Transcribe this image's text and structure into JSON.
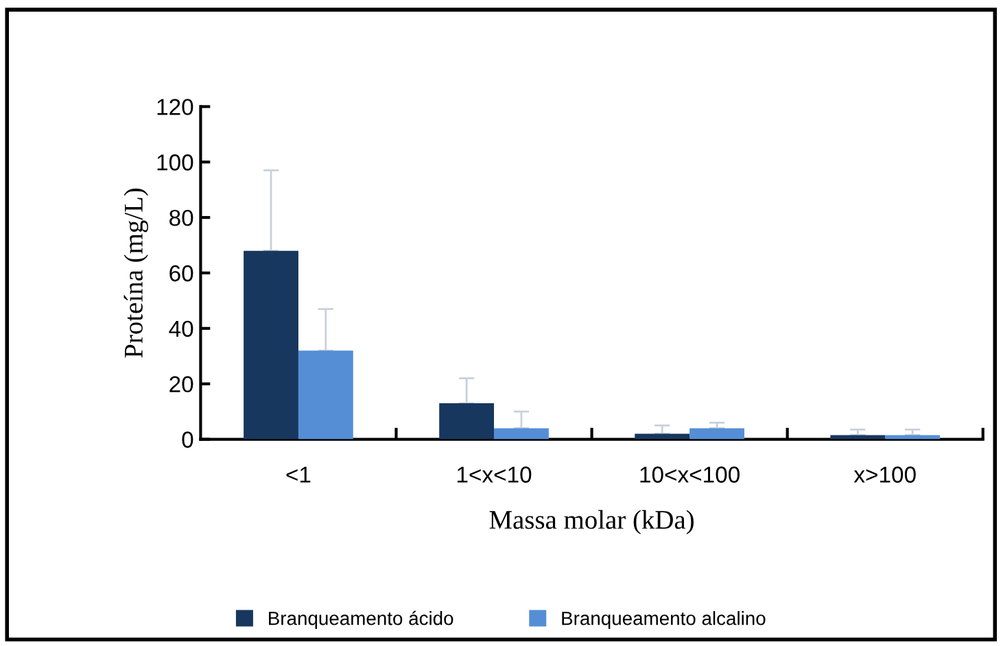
{
  "chart_data": {
    "type": "bar",
    "categories": [
      "<1",
      "1<x<10",
      "10<x<100",
      "x>100"
    ],
    "xlabel": "Massa molar (kDa)",
    "ylabel": "Proteína (mg/L)",
    "series": [
      {
        "name": "Branqueamento ácido",
        "color": "#17375e",
        "values": [
          68,
          13,
          2,
          1.5
        ],
        "errors": [
          [
            68,
            97
          ],
          [
            13,
            22
          ],
          [
            2,
            5
          ],
          [
            1.5,
            3.5
          ]
        ]
      },
      {
        "name": "Branqueamento alcalino",
        "color": "#558ed5",
        "values": [
          32,
          4,
          4,
          1.5
        ],
        "errors": [
          [
            32,
            47
          ],
          [
            4,
            10
          ],
          [
            4,
            6
          ],
          [
            1.5,
            3.5
          ]
        ]
      }
    ],
    "ylim": [
      0,
      120
    ],
    "yticks": [
      0,
      20,
      40,
      60,
      80,
      100,
      120
    ],
    "grid": false,
    "legend": "bottom"
  }
}
